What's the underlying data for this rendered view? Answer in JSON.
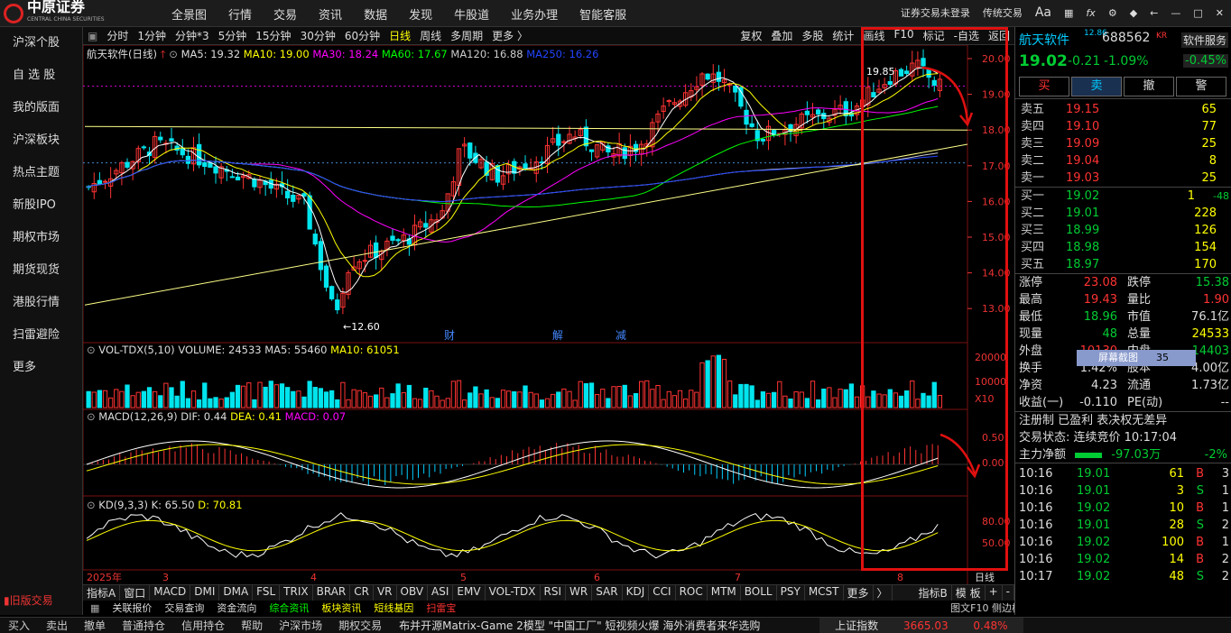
{
  "brand": {
    "name": "中原证券",
    "sub": "CENTRAL CHINA SECURITIES"
  },
  "nav": [
    "全景图",
    "行情",
    "交易",
    "资讯",
    "数据",
    "发现",
    "牛股道",
    "业务办理",
    "智能客服"
  ],
  "topright": {
    "login": "证券交易未登录",
    "mode": "传统交易",
    "aa": "Aa"
  },
  "sidebar": [
    "沪深个股",
    "自 选 股",
    "我的版面",
    "沪深板块",
    "热点主题",
    "新股IPO",
    "期权市场",
    "期货现货",
    "港股行情",
    "扫雷避险",
    "更多"
  ],
  "sidebar_old": "旧版交易",
  "periods": [
    "分时",
    "1分钟",
    "分钟*3",
    "5分钟",
    "15分钟",
    "30分钟",
    "60分钟",
    "日线",
    "周线",
    "多周期",
    "更多 〉"
  ],
  "chart_tools": [
    "复权",
    "叠加",
    "多股",
    "统计",
    "画线",
    "F10",
    "标记",
    "-自选",
    "返回"
  ],
  "main_legend": {
    "title": "航天软件(日线)",
    "ma5": "MA5: 19.32",
    "ma10": "MA10: 19.00",
    "ma30": "MA30: 18.24",
    "ma60": "MA60: 17.67",
    "ma120": "MA120: 16.88",
    "ma250": "MA250: 16.26"
  },
  "vol_legend": {
    "title": "VOL-TDX(5,10)",
    "vol": "VOLUME: 24533",
    "ma5": "MA5: 55460",
    "ma10": "MA10: 61051"
  },
  "macd_legend": {
    "title": "MACD(12,26,9)",
    "dif": "DIF: 0.44",
    "dea": "DEA: 0.41",
    "macd": "MACD: 0.07"
  },
  "kd_legend": {
    "title": "KD(9,3,3)",
    "k": "K: 65.50",
    "d": "D: 70.81"
  },
  "price_axis": [
    "20.00",
    "19.00",
    "18.00",
    "17.00",
    "16.00",
    "15.00",
    "14.00",
    "13.00"
  ],
  "vol_axis": [
    "20000",
    "10000",
    "X10"
  ],
  "macd_axis": [
    "0.50",
    "0.00"
  ],
  "kd_axis": [
    "80.00",
    "50.00"
  ],
  "annotations": {
    "high": "19.85",
    "low": "12.60",
    "tags": [
      "财",
      "解",
      "减"
    ]
  },
  "date_axis": [
    "2025年",
    "3",
    "4",
    "5",
    "6",
    "7",
    "8"
  ],
  "period_label": "日线",
  "indicators": [
    "指标A",
    "窗口",
    "MACD",
    "DMI",
    "DMA",
    "FSL",
    "TRIX",
    "BRAR",
    "CR",
    "VR",
    "OBV",
    "ASI",
    "EMV",
    "VOL-TDX",
    "RSI",
    "WR",
    "SAR",
    "KDJ",
    "CCI",
    "ROC",
    "MTM",
    "BOLL",
    "PSY",
    "MCST",
    "更多",
    "〉"
  ],
  "indicator_right": [
    "指标B",
    "模 板",
    "+",
    "-"
  ],
  "links": [
    "关联报价",
    "交易查询",
    "资金流向",
    "综合资讯",
    "板块资讯",
    "短线基因",
    "扫雷宝"
  ],
  "screenshot_tip": "屏幕截图",
  "status_bar": {
    "items": [
      "买入",
      "卖出",
      "撤单",
      "普通持仓",
      "信用持仓",
      "帮助",
      "沪深市场",
      "期权交易"
    ],
    "ticker": "布并开源Matrix-Game 2模型    \"中国工厂\" 短视频火爆 海外消费者来华选购",
    "index_name": "上证指数",
    "index_value": "3665.03",
    "index_change": "0.48%",
    "f10": "图文F10 侧边栏"
  },
  "stock": {
    "name": "航天软件",
    "badge": "12.86",
    "code": "688562",
    "kr": "KR",
    "service": "软件服务",
    "price": "19.02",
    "change": "-0.21",
    "pct": "-1.09%",
    "sector_pct": "-0.45%"
  },
  "actions": [
    "买",
    "卖",
    "撤",
    "警"
  ],
  "asks": [
    {
      "l": "卖五",
      "p": "19.15",
      "v": "65"
    },
    {
      "l": "卖四",
      "p": "19.10",
      "v": "77"
    },
    {
      "l": "卖三",
      "p": "19.09",
      "v": "25"
    },
    {
      "l": "卖二",
      "p": "19.04",
      "v": "8"
    },
    {
      "l": "卖一",
      "p": "19.03",
      "v": "25"
    }
  ],
  "bids": [
    {
      "l": "买一",
      "p": "19.02",
      "v": "1",
      "d": "-48"
    },
    {
      "l": "买二",
      "p": "19.01",
      "v": "228"
    },
    {
      "l": "买三",
      "p": "18.99",
      "v": "126"
    },
    {
      "l": "买四",
      "p": "18.98",
      "v": "154"
    },
    {
      "l": "买五",
      "p": "18.97",
      "v": "170"
    }
  ],
  "stats": [
    {
      "a": "涨停",
      "av": "23.08",
      "b": "跌停",
      "bv": "15.38"
    },
    {
      "a": "最高",
      "av": "19.43",
      "b": "量比",
      "bv": "1.90"
    },
    {
      "a": "最低",
      "av": "18.96",
      "b": "市值",
      "bv": "76.1亿"
    },
    {
      "a": "现量",
      "av": "48",
      "b": "总量",
      "bv": "24533"
    },
    {
      "a": "外盘",
      "av": "10130",
      "b": "内盘",
      "bv": "14403"
    },
    {
      "a": "换手",
      "av": "1.42%",
      "b": "股本",
      "bv": "4.00亿",
      "tip_v": "35"
    },
    {
      "a": "净资",
      "av": "4.23",
      "b": "流通",
      "bv": "1.73亿"
    },
    {
      "a": "收益(一)",
      "av": "-0.110",
      "b": "PE(动)",
      "bv": "--"
    }
  ],
  "tags_line": "注册制 已盈利 表决权无差异",
  "trade_status": {
    "label": "交易状态:",
    "value": "连续竞价 10:17:04"
  },
  "main_flow": {
    "label": "主力净额",
    "value": "-97.03万",
    "pct": "-2%"
  },
  "ticks": [
    {
      "t": "10:16",
      "p": "19.01",
      "v": "61",
      "s": "B",
      "n": "3"
    },
    {
      "t": "10:16",
      "p": "19.01",
      "v": "3",
      "s": "S",
      "n": "1"
    },
    {
      "t": "10:16",
      "p": "19.02",
      "v": "10",
      "s": "B",
      "n": "1"
    },
    {
      "t": "10:16",
      "p": "19.01",
      "v": "28",
      "s": "S",
      "n": "2"
    },
    {
      "t": "10:16",
      "p": "19.02",
      "v": "100",
      "s": "B",
      "n": "1"
    },
    {
      "t": "10:16",
      "p": "19.02",
      "v": "14",
      "s": "B",
      "n": "2"
    },
    {
      "t": "10:17",
      "p": "19.02",
      "v": "48",
      "s": "S",
      "n": "2"
    }
  ],
  "colors": {
    "up": "#ff3333",
    "down": "#00e5ee",
    "ma5": "#ffffff",
    "ma10": "#ffff00",
    "ma30": "#ff00ff",
    "ma60": "#00ff00",
    "ma120": "#cccccc",
    "ma250": "#0044ff",
    "highlight": "#e01010"
  }
}
